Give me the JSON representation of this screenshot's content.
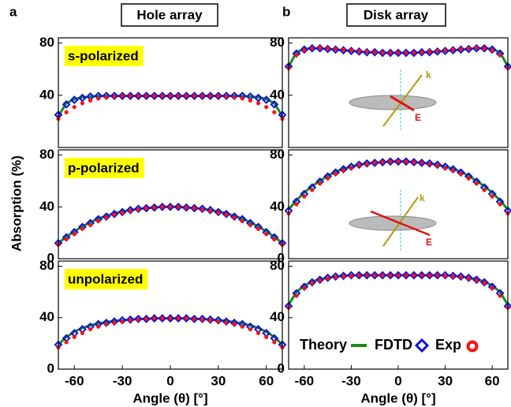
{
  "figure": {
    "labels": [
      "a",
      "b"
    ],
    "columns": [
      "Hole array",
      "Disk array"
    ],
    "ylabel": "Absorption (%)"
  },
  "chart_data": [
    {
      "type": "line",
      "annotation": "s-polarized",
      "x": [
        -70,
        -65,
        -60,
        -55,
        -50,
        -45,
        -40,
        -35,
        -30,
        -25,
        -20,
        -15,
        -10,
        -5,
        0,
        5,
        10,
        15,
        20,
        25,
        30,
        35,
        40,
        45,
        50,
        55,
        60,
        65,
        70
      ],
      "xlim": [
        -70,
        70
      ],
      "ylim": [
        0,
        84
      ],
      "yticks": [
        40,
        80
      ],
      "series": [
        {
          "color": "#1a8a1a",
          "marker": "line",
          "values": [
            24,
            34,
            37,
            38.5,
            39,
            39.5,
            39.5,
            39.5,
            39.5,
            39.5,
            39.5,
            39.5,
            39.5,
            39.5,
            39.5,
            39.5,
            39.5,
            39.5,
            39.5,
            39.5,
            39.5,
            39.5,
            39.5,
            39.5,
            39,
            38.5,
            37,
            34,
            24
          ]
        },
        {
          "color": "#1010e0",
          "marker": "diamond",
          "values": [
            25,
            33,
            36.5,
            38,
            39,
            39.5,
            39.5,
            39.5,
            39.5,
            39.5,
            39.5,
            39.5,
            39.5,
            39.5,
            39.5,
            39.5,
            39.5,
            39.5,
            39.5,
            39.5,
            39.5,
            39.5,
            39.5,
            39.5,
            39,
            38,
            36.5,
            33,
            25
          ]
        },
        {
          "color": "#ff1010",
          "marker": "circle",
          "values": [
            22,
            27,
            31,
            34,
            36,
            37.5,
            38.5,
            39,
            39.5,
            39.5,
            39.5,
            39.5,
            39.5,
            39.5,
            39.5,
            39.5,
            39.5,
            39.5,
            39.5,
            39.5,
            39.5,
            39,
            38.5,
            37.5,
            36,
            34,
            31,
            27,
            22
          ]
        }
      ]
    },
    {
      "type": "line",
      "annotation": "p-polarized",
      "x": [
        -70,
        -65,
        -60,
        -55,
        -50,
        -45,
        -40,
        -35,
        -30,
        -25,
        -20,
        -15,
        -10,
        -5,
        0,
        5,
        10,
        15,
        20,
        25,
        30,
        35,
        40,
        45,
        50,
        55,
        60,
        65,
        70
      ],
      "xlim": [
        -70,
        70
      ],
      "ylim": [
        0,
        84
      ],
      "yticks": [
        0,
        40,
        80
      ],
      "series": [
        {
          "color": "#1a8a1a",
          "marker": "line",
          "values": [
            12,
            17,
            21,
            25,
            28,
            31,
            33,
            35,
            36.5,
            37.5,
            38.5,
            39,
            39.5,
            40,
            40,
            40,
            39.5,
            39,
            38.5,
            37.5,
            36.5,
            35,
            33,
            31,
            28,
            25,
            21,
            17,
            12
          ]
        },
        {
          "color": "#1010e0",
          "marker": "diamond",
          "values": [
            12,
            16.5,
            20.5,
            24.5,
            27.5,
            30.5,
            32.5,
            34.5,
            36,
            37.5,
            38.5,
            39,
            39.5,
            40,
            40,
            40,
            39.5,
            39,
            38.5,
            37.5,
            36,
            34.5,
            32.5,
            30.5,
            27.5,
            24.5,
            20.5,
            16.5,
            12
          ]
        },
        {
          "color": "#ff1010",
          "marker": "circle",
          "values": [
            11,
            15,
            19,
            23,
            26,
            29,
            32,
            34,
            35.5,
            37,
            38,
            39,
            39.5,
            40,
            40,
            40,
            39.5,
            39,
            38,
            37,
            35.5,
            34,
            32,
            29,
            26,
            23,
            19,
            15,
            11
          ]
        }
      ]
    },
    {
      "type": "line",
      "annotation": "unpolarized",
      "xlabel": "Angle (θ) [°]",
      "x": [
        -70,
        -65,
        -60,
        -55,
        -50,
        -45,
        -40,
        -35,
        -30,
        -25,
        -20,
        -15,
        -10,
        -5,
        0,
        5,
        10,
        15,
        20,
        25,
        30,
        35,
        40,
        45,
        50,
        55,
        60,
        65,
        70
      ],
      "xlim": [
        -70,
        70
      ],
      "xticks": [
        -60,
        -30,
        0,
        30,
        60
      ],
      "ylim": [
        0,
        84
      ],
      "yticks": [
        0,
        40,
        80
      ],
      "series": [
        {
          "color": "#1a8a1a",
          "marker": "line",
          "values": [
            19,
            25,
            29,
            32,
            34,
            35.5,
            36.5,
            37.5,
            38,
            38.5,
            39,
            39,
            39.5,
            39.5,
            39.5,
            39.5,
            39.5,
            39,
            39,
            38.5,
            38,
            37.5,
            36.5,
            35.5,
            34,
            32,
            29,
            25,
            19
          ]
        },
        {
          "color": "#1010e0",
          "marker": "diamond",
          "values": [
            19,
            24,
            28,
            31,
            33,
            35,
            36,
            37,
            38,
            38.5,
            39,
            39,
            39.5,
            39.5,
            39.5,
            39.5,
            39.5,
            39,
            39,
            38.5,
            38,
            37,
            36,
            35,
            33,
            31,
            28,
            24,
            19
          ]
        },
        {
          "color": "#ff1010",
          "marker": "circle",
          "values": [
            17,
            21,
            25,
            28,
            31,
            33,
            35,
            36,
            37,
            38,
            38.5,
            39,
            39.5,
            39.5,
            39.5,
            39.5,
            39.5,
            39,
            38.5,
            38,
            37,
            36,
            35,
            33,
            31,
            28,
            25,
            21,
            17
          ]
        }
      ]
    },
    {
      "type": "line",
      "inset_labels": [
        "k",
        "E"
      ],
      "x": [
        -70,
        -65,
        -60,
        -55,
        -50,
        -45,
        -40,
        -35,
        -30,
        -25,
        -20,
        -15,
        -10,
        -5,
        0,
        5,
        10,
        15,
        20,
        25,
        30,
        35,
        40,
        45,
        50,
        55,
        60,
        65,
        70
      ],
      "xlim": [
        -70,
        70
      ],
      "ylim": [
        0,
        84
      ],
      "yticks": [
        40,
        80
      ],
      "series": [
        {
          "color": "#1a8a1a",
          "marker": "line",
          "values": [
            62,
            73,
            75.5,
            76,
            76,
            75.5,
            75,
            74.5,
            74,
            73.5,
            73,
            73,
            72.5,
            72.5,
            72.5,
            72.5,
            72.5,
            73,
            73,
            73.5,
            74,
            74.5,
            75,
            75.5,
            76,
            76,
            75.5,
            73,
            62
          ]
        },
        {
          "color": "#1010e0",
          "marker": "diamond",
          "values": [
            62,
            72,
            75,
            76,
            76,
            75.5,
            75,
            74.5,
            74,
            73.5,
            73,
            73,
            72.5,
            72.5,
            72.5,
            72.5,
            72.5,
            73,
            73,
            73.5,
            74,
            74.5,
            75,
            75.5,
            76,
            76,
            75,
            72,
            62
          ]
        },
        {
          "color": "#ff1010",
          "marker": "circle",
          "values": [
            61,
            71,
            74.5,
            76,
            76.5,
            76,
            75.5,
            75,
            74.5,
            74,
            73.5,
            73,
            72.5,
            72.5,
            72.5,
            72.5,
            72.5,
            73,
            73.5,
            74,
            74.5,
            75,
            75.5,
            76,
            76.5,
            76,
            74.5,
            71,
            61
          ]
        }
      ]
    },
    {
      "type": "line",
      "inset_labels": [
        "k",
        "E"
      ],
      "x": [
        -70,
        -65,
        -60,
        -55,
        -50,
        -45,
        -40,
        -35,
        -30,
        -25,
        -20,
        -15,
        -10,
        -5,
        0,
        5,
        10,
        15,
        20,
        25,
        30,
        35,
        40,
        45,
        50,
        55,
        60,
        65,
        70
      ],
      "xlim": [
        -70,
        70
      ],
      "ylim": [
        0,
        84
      ],
      "yticks": [
        0,
        40,
        80
      ],
      "series": [
        {
          "color": "#1a8a1a",
          "marker": "line",
          "values": [
            38,
            45,
            51,
            56,
            60,
            64,
            67,
            69.5,
            71,
            72.5,
            73.5,
            74,
            74.5,
            75,
            75,
            75,
            74.5,
            74,
            73.5,
            72.5,
            71,
            69.5,
            67,
            64,
            60,
            56,
            51,
            45,
            38
          ]
        },
        {
          "color": "#1010e0",
          "marker": "diamond",
          "values": [
            37,
            44,
            50,
            55,
            59.5,
            63.5,
            66.5,
            69,
            71,
            72.5,
            73.5,
            74,
            74.5,
            75,
            75,
            75,
            74.5,
            74,
            73.5,
            72.5,
            71,
            69,
            66.5,
            63.5,
            59.5,
            55,
            50,
            44,
            37
          ]
        },
        {
          "color": "#ff1010",
          "marker": "circle",
          "values": [
            35,
            42,
            48,
            53,
            58,
            62,
            65.5,
            68,
            70,
            72,
            73,
            74,
            74.5,
            75,
            75,
            75,
            74.5,
            74,
            73,
            72,
            70,
            68,
            65.5,
            62,
            58,
            53,
            48,
            42,
            35
          ]
        }
      ]
    },
    {
      "type": "line",
      "xlabel": "Angle (θ) [°]",
      "legend": "lower right",
      "x": [
        -70,
        -65,
        -60,
        -55,
        -50,
        -45,
        -40,
        -35,
        -30,
        -25,
        -20,
        -15,
        -10,
        -5,
        0,
        5,
        10,
        15,
        20,
        25,
        30,
        35,
        40,
        45,
        50,
        55,
        60,
        65,
        70
      ],
      "xlim": [
        -70,
        70
      ],
      "xticks": [
        -60,
        -30,
        0,
        30,
        60
      ],
      "ylim": [
        0,
        84
      ],
      "yticks": [
        0,
        40,
        80
      ],
      "series": [
        {
          "name": "Theory",
          "color": "#1a8a1a",
          "marker": "line",
          "values": [
            50,
            60,
            65,
            68,
            70,
            71,
            72,
            72.5,
            73,
            73,
            73,
            73,
            73,
            73,
            73,
            73,
            73,
            73,
            73,
            73,
            73,
            72.5,
            72,
            71,
            70,
            68,
            65,
            60,
            50
          ]
        },
        {
          "name": "FDTD",
          "color": "#1010e0",
          "marker": "diamond",
          "values": [
            49,
            59,
            64,
            67.5,
            69.5,
            71,
            72,
            72.5,
            73,
            73,
            73,
            73,
            73,
            73,
            73,
            73,
            73,
            73,
            73,
            73,
            73,
            72.5,
            72,
            71,
            69.5,
            67.5,
            64,
            59,
            49
          ]
        },
        {
          "name": "Exp",
          "color": "#ff1010",
          "marker": "circle",
          "values": [
            48,
            57,
            63,
            67,
            69,
            70.5,
            71.5,
            72,
            72.5,
            73,
            73,
            73,
            73,
            73,
            73,
            73,
            73,
            73,
            73,
            73,
            72.5,
            72,
            71.5,
            70.5,
            69,
            67,
            63,
            57,
            48
          ]
        }
      ]
    }
  ]
}
